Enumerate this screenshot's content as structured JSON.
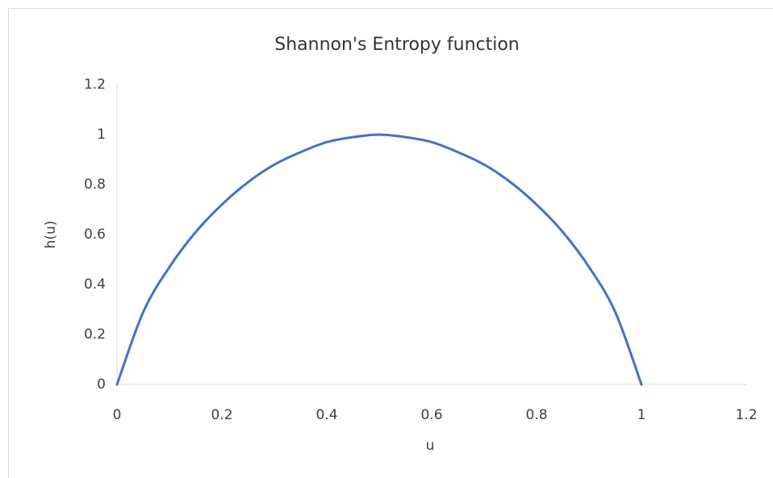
{
  "chart_data": {
    "type": "line",
    "title": "Shannon's Entropy function",
    "x_label": "u",
    "y_label": "h(u)",
    "x": [
      0,
      0.05,
      0.1,
      0.15,
      0.2,
      0.25,
      0.3,
      0.35,
      0.4,
      0.45,
      0.5,
      0.55,
      0.6,
      0.65,
      0.7,
      0.75,
      0.8,
      0.85,
      0.9,
      0.95,
      1
    ],
    "series": [
      {
        "name": "h(u)",
        "color": "#4472c4",
        "values": [
          0,
          0.29,
          0.47,
          0.61,
          0.72,
          0.81,
          0.88,
          0.93,
          0.97,
          0.99,
          1,
          0.99,
          0.97,
          0.93,
          0.88,
          0.81,
          0.72,
          0.61,
          0.47,
          0.29,
          0
        ]
      }
    ],
    "xlim": [
      0,
      1.2
    ],
    "xticks": [
      0,
      0.2,
      0.4,
      0.6,
      0.8,
      1,
      1.2
    ],
    "ylim": [
      0,
      1.2
    ],
    "yticks": [
      0,
      0.2,
      0.4,
      0.6,
      0.8,
      1,
      1.2
    ],
    "grid": false,
    "smooth": true
  }
}
